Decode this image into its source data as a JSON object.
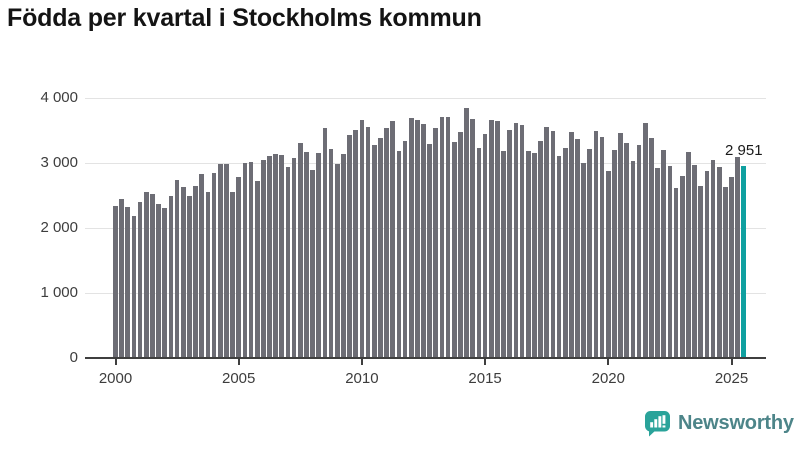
{
  "title": "Födda per kvartal i Stockholms kommun",
  "annotation": {
    "last_value_label": "2 951"
  },
  "branding": {
    "logo_text": "Newsworthy",
    "logo_icon": "newsworthy-speech-bubble-bar-chart-icon"
  },
  "colors": {
    "bar": "#6d6d75",
    "highlight": "#0fa0a0",
    "grid": "#e3e3e3",
    "axis": "#3f3f3f",
    "axis_text": "#3d3d3d",
    "title_text": "#141414",
    "annotation_text": "#1a1a1a",
    "logo_text": "#4d8589",
    "logo_icon": "#2aa39a",
    "background": "#ffffff"
  },
  "chart_data": {
    "type": "bar",
    "title": "Födda per kvartal i Stockholms kommun",
    "xlabel": "",
    "ylabel": "",
    "ylim": [
      0,
      4000
    ],
    "grid": "horizontal",
    "yticks": [
      0,
      1000,
      2000,
      3000,
      4000
    ],
    "ytick_labels": [
      "0",
      "1 000",
      "2 000",
      "3 000",
      "4 000"
    ],
    "xtick_labels": [
      "2000",
      "2005",
      "2010",
      "2015",
      "2020",
      "2025"
    ],
    "xtick_indices": [
      0,
      20,
      40,
      60,
      80,
      100
    ],
    "highlight_index": 102,
    "highlight_label": "2 951",
    "categories": [
      "2000K1",
      "2000K2",
      "2000K3",
      "2000K4",
      "2001K1",
      "2001K2",
      "2001K3",
      "2001K4",
      "2002K1",
      "2002K2",
      "2002K3",
      "2002K4",
      "2003K1",
      "2003K2",
      "2003K3",
      "2003K4",
      "2004K1",
      "2004K2",
      "2004K3",
      "2004K4",
      "2005K1",
      "2005K2",
      "2005K3",
      "2005K4",
      "2006K1",
      "2006K2",
      "2006K3",
      "2006K4",
      "2007K1",
      "2007K2",
      "2007K3",
      "2007K4",
      "2008K1",
      "2008K2",
      "2008K3",
      "2008K4",
      "2009K1",
      "2009K2",
      "2009K3",
      "2009K4",
      "2010K1",
      "2010K2",
      "2010K3",
      "2010K4",
      "2011K1",
      "2011K2",
      "2011K3",
      "2011K4",
      "2012K1",
      "2012K2",
      "2012K3",
      "2012K4",
      "2013K1",
      "2013K2",
      "2013K3",
      "2013K4",
      "2014K1",
      "2014K2",
      "2014K3",
      "2014K4",
      "2015K1",
      "2015K2",
      "2015K3",
      "2015K4",
      "2016K1",
      "2016K2",
      "2016K3",
      "2016K4",
      "2017K1",
      "2017K2",
      "2017K3",
      "2017K4",
      "2018K1",
      "2018K2",
      "2018K3",
      "2018K4",
      "2019K1",
      "2019K2",
      "2019K3",
      "2019K4",
      "2020K1",
      "2020K2",
      "2020K3",
      "2020K4",
      "2021K1",
      "2021K2",
      "2021K3",
      "2021K4",
      "2022K1",
      "2022K2",
      "2022K3",
      "2022K4",
      "2023K1",
      "2023K2",
      "2023K3",
      "2023K4",
      "2024K1",
      "2024K2",
      "2024K3",
      "2024K4",
      "2025K1",
      "2025K2",
      "2025K3"
    ],
    "series": [
      {
        "name": "Födda",
        "values": [
          2338,
          2441,
          2318,
          2185,
          2400,
          2540,
          2515,
          2355,
          2297,
          2482,
          2728,
          2620,
          2492,
          2636,
          2831,
          2554,
          2841,
          2985,
          2985,
          2543,
          2770,
          2995,
          3010,
          2720,
          3040,
          3100,
          3125,
          3110,
          2927,
          3071,
          3297,
          3164,
          2887,
          3148,
          3533,
          3215,
          2979,
          3133,
          3430,
          3507,
          3661,
          3543,
          3276,
          3379,
          3533,
          3635,
          3174,
          3327,
          3687,
          3661,
          3594,
          3287,
          3533,
          3697,
          3697,
          3312,
          3471,
          3841,
          3676,
          3225,
          3441,
          3661,
          3645,
          3184,
          3507,
          3610,
          3584,
          3174,
          3148,
          3328,
          3543,
          3482,
          3097,
          3225,
          3470,
          3364,
          2995,
          3215,
          3482,
          3389,
          2877,
          3200,
          3456,
          3303,
          3020,
          3267,
          3610,
          3379,
          2918,
          3200,
          2943,
          2610,
          2789,
          3159,
          2969,
          2640,
          2866,
          3046,
          2930,
          2620,
          2774,
          3082,
          2951
        ]
      }
    ]
  }
}
